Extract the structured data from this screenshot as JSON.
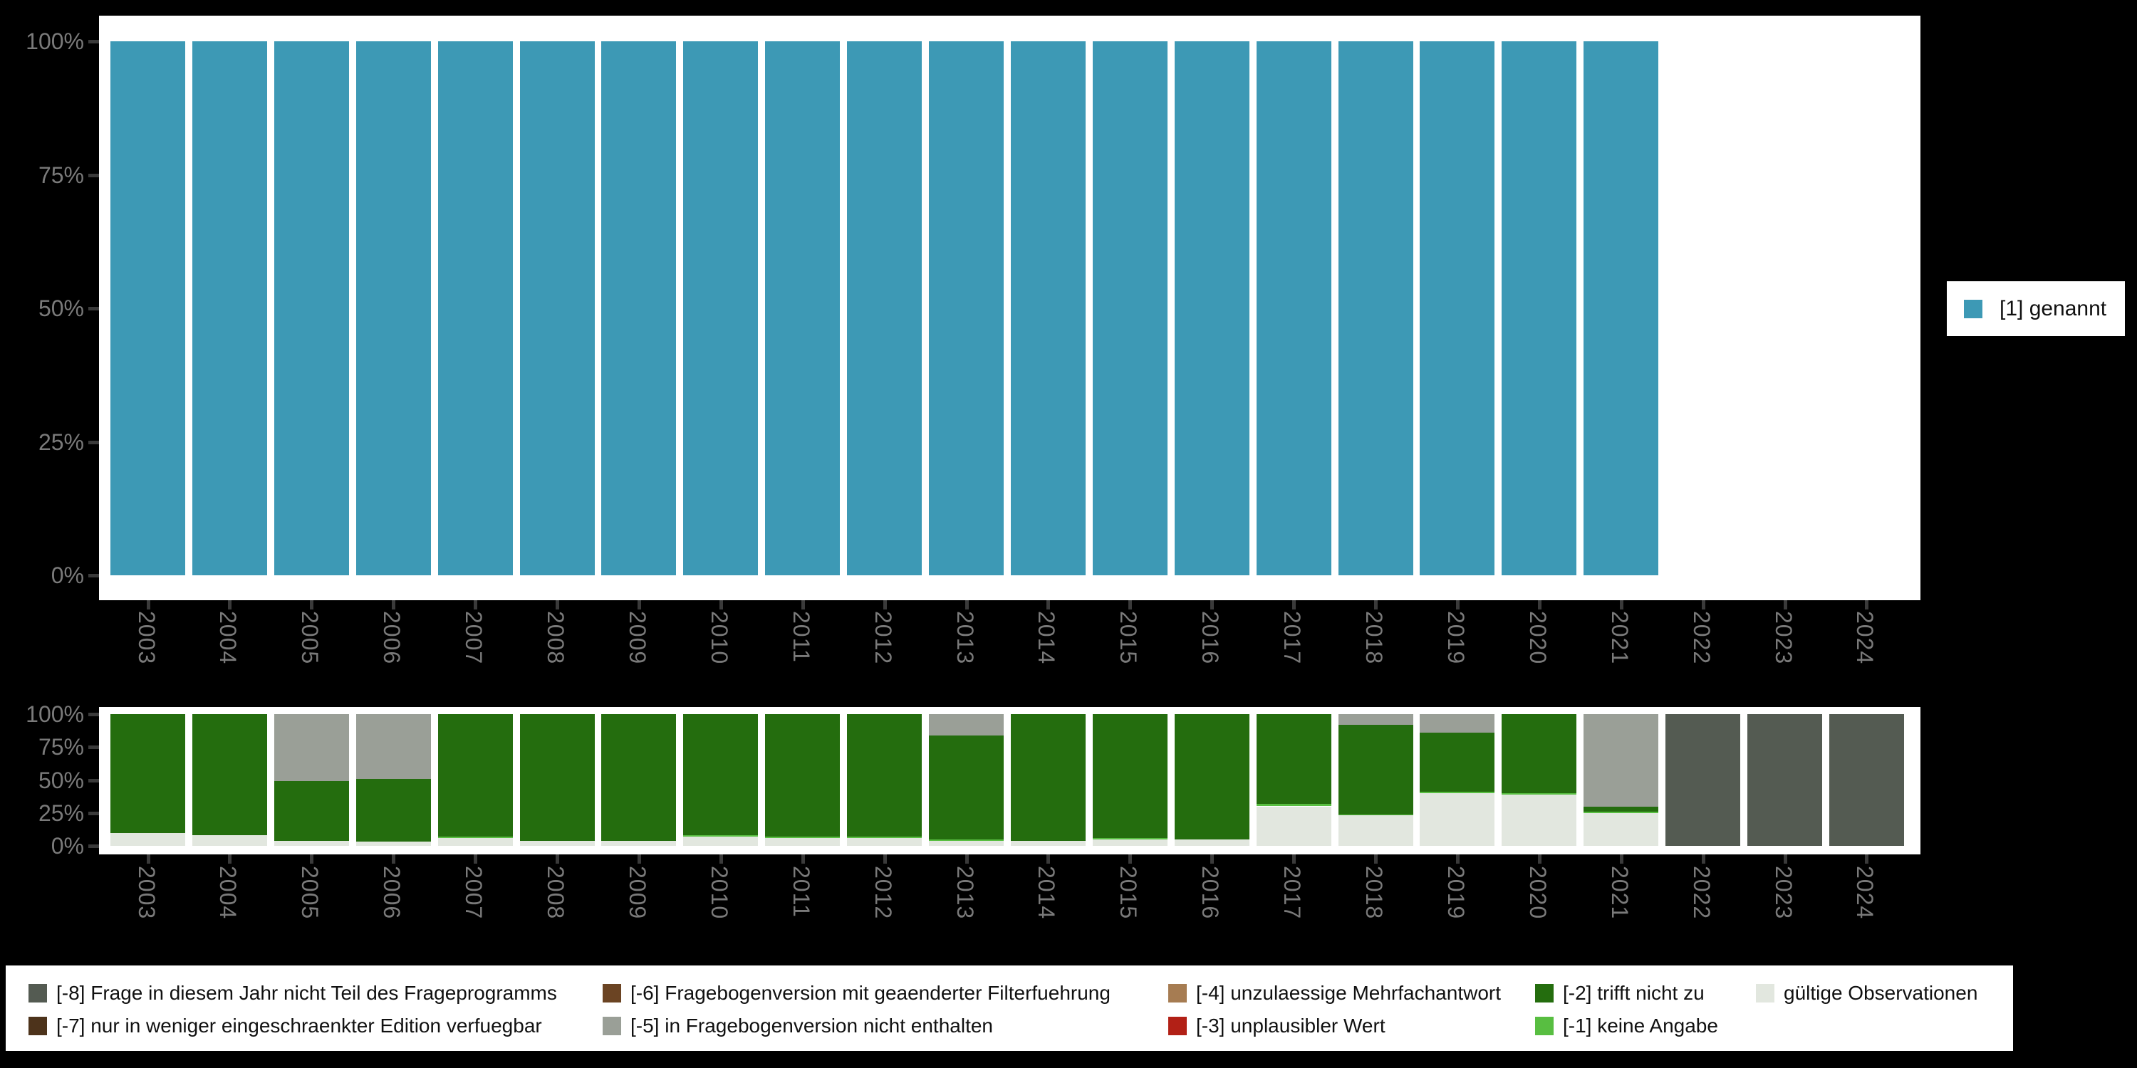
{
  "colors": {
    "background": "#000000",
    "plot_bg": "#ffffff",
    "axis_label": "#7a7a7a",
    "tick": "#3a3a3a",
    "genannt": "#3D99B5",
    "not_part_of_survey": "#545B52",
    "restricted_edition": "#4D331B",
    "changed_filter": "#6B4423",
    "not_in_version": "#9A9F97",
    "multi_answer": "#A67C52",
    "implausible": "#B22016",
    "not_applicable": "#246D0E",
    "no_answer": "#58BE41",
    "valid_obs": "#E2E7DF"
  },
  "top_legend": {
    "label": "[1] genannt",
    "color_key": "genannt"
  },
  "chart_data": [
    {
      "type": "bar",
      "title": "",
      "xlabel": "",
      "ylabel": "",
      "ylim": [
        0,
        100
      ],
      "grid": false,
      "legend_position": "right",
      "yticks": [
        "0%",
        "25%",
        "50%",
        "75%",
        "100%"
      ],
      "categories": [
        "2003",
        "2004",
        "2005",
        "2006",
        "2007",
        "2008",
        "2009",
        "2010",
        "2011",
        "2012",
        "2013",
        "2014",
        "2015",
        "2016",
        "2017",
        "2018",
        "2019",
        "2020",
        "2021",
        "2022",
        "2023",
        "2024"
      ],
      "series": [
        {
          "name": "[1] genannt",
          "color_key": "genannt",
          "values": [
            100,
            100,
            100,
            100,
            100,
            100,
            100,
            100,
            100,
            100,
            100,
            100,
            100,
            100,
            100,
            100,
            100,
            100,
            100,
            null,
            null,
            null
          ]
        }
      ]
    },
    {
      "type": "stacked-bar-percent",
      "title": "",
      "xlabel": "",
      "ylabel": "",
      "ylim": [
        0,
        100
      ],
      "grid": false,
      "yticks": [
        "0%",
        "25%",
        "50%",
        "75%",
        "100%"
      ],
      "categories": [
        "2003",
        "2004",
        "2005",
        "2006",
        "2007",
        "2008",
        "2009",
        "2010",
        "2011",
        "2012",
        "2013",
        "2014",
        "2015",
        "2016",
        "2017",
        "2018",
        "2019",
        "2020",
        "2021",
        "2022",
        "2023",
        "2024"
      ],
      "bars": [
        {
          "category": "2003",
          "segments": [
            {
              "key": "valid_obs",
              "value": 10
            },
            {
              "key": "not_applicable",
              "value": 90
            }
          ]
        },
        {
          "category": "2004",
          "segments": [
            {
              "key": "valid_obs",
              "value": 8
            },
            {
              "key": "not_applicable",
              "value": 92
            }
          ]
        },
        {
          "category": "2005",
          "segments": [
            {
              "key": "valid_obs",
              "value": 4
            },
            {
              "key": "not_applicable",
              "value": 45
            },
            {
              "key": "not_in_version",
              "value": 51
            }
          ]
        },
        {
          "category": "2006",
          "segments": [
            {
              "key": "valid_obs",
              "value": 3
            },
            {
              "key": "not_applicable",
              "value": 48
            },
            {
              "key": "not_in_version",
              "value": 49
            }
          ]
        },
        {
          "category": "2007",
          "segments": [
            {
              "key": "valid_obs",
              "value": 6
            },
            {
              "key": "no_answer",
              "value": 1
            },
            {
              "key": "not_applicable",
              "value": 93
            }
          ]
        },
        {
          "category": "2008",
          "segments": [
            {
              "key": "valid_obs",
              "value": 4
            },
            {
              "key": "not_applicable",
              "value": 96
            }
          ]
        },
        {
          "category": "2009",
          "segments": [
            {
              "key": "valid_obs",
              "value": 4
            },
            {
              "key": "not_applicable",
              "value": 96
            }
          ]
        },
        {
          "category": "2010",
          "segments": [
            {
              "key": "valid_obs",
              "value": 7
            },
            {
              "key": "no_answer",
              "value": 1
            },
            {
              "key": "not_applicable",
              "value": 92
            }
          ]
        },
        {
          "category": "2011",
          "segments": [
            {
              "key": "valid_obs",
              "value": 6
            },
            {
              "key": "no_answer",
              "value": 1
            },
            {
              "key": "not_applicable",
              "value": 93
            }
          ]
        },
        {
          "category": "2012",
          "segments": [
            {
              "key": "valid_obs",
              "value": 6
            },
            {
              "key": "no_answer",
              "value": 1
            },
            {
              "key": "not_applicable",
              "value": 93
            }
          ]
        },
        {
          "category": "2013",
          "segments": [
            {
              "key": "valid_obs",
              "value": 4
            },
            {
              "key": "no_answer",
              "value": 1
            },
            {
              "key": "not_applicable",
              "value": 79
            },
            {
              "key": "not_in_version",
              "value": 16
            }
          ]
        },
        {
          "category": "2014",
          "segments": [
            {
              "key": "valid_obs",
              "value": 4
            },
            {
              "key": "not_applicable",
              "value": 96
            }
          ]
        },
        {
          "category": "2015",
          "segments": [
            {
              "key": "valid_obs",
              "value": 5
            },
            {
              "key": "no_answer",
              "value": 1
            },
            {
              "key": "not_applicable",
              "value": 94
            }
          ]
        },
        {
          "category": "2016",
          "segments": [
            {
              "key": "valid_obs",
              "value": 5
            },
            {
              "key": "not_applicable",
              "value": 95
            }
          ]
        },
        {
          "category": "2017",
          "segments": [
            {
              "key": "valid_obs",
              "value": 30
            },
            {
              "key": "no_answer",
              "value": 2
            },
            {
              "key": "not_applicable",
              "value": 68
            }
          ]
        },
        {
          "category": "2018",
          "segments": [
            {
              "key": "valid_obs",
              "value": 23
            },
            {
              "key": "no_answer",
              "value": 1
            },
            {
              "key": "not_applicable",
              "value": 68
            },
            {
              "key": "not_in_version",
              "value": 8
            }
          ]
        },
        {
          "category": "2019",
          "segments": [
            {
              "key": "valid_obs",
              "value": 40
            },
            {
              "key": "no_answer",
              "value": 1
            },
            {
              "key": "not_applicable",
              "value": 45
            },
            {
              "key": "not_in_version",
              "value": 14
            }
          ]
        },
        {
          "category": "2020",
          "segments": [
            {
              "key": "valid_obs",
              "value": 39
            },
            {
              "key": "no_answer",
              "value": 1
            },
            {
              "key": "not_applicable",
              "value": 60
            }
          ]
        },
        {
          "category": "2021",
          "segments": [
            {
              "key": "valid_obs",
              "value": 25
            },
            {
              "key": "no_answer",
              "value": 1
            },
            {
              "key": "not_applicable",
              "value": 4
            },
            {
              "key": "not_in_version",
              "value": 70
            }
          ]
        },
        {
          "category": "2022",
          "segments": [
            {
              "key": "not_part_of_survey",
              "value": 100
            }
          ]
        },
        {
          "category": "2023",
          "segments": [
            {
              "key": "not_part_of_survey",
              "value": 100
            }
          ]
        },
        {
          "category": "2024",
          "segments": [
            {
              "key": "not_part_of_survey",
              "value": 100
            }
          ]
        }
      ]
    }
  ],
  "bottom_legend": {
    "columns": [
      {
        "items": [
          {
            "label": "[-8] Frage in diesem Jahr nicht Teil des Frageprogramms",
            "key": "not_part_of_survey"
          },
          {
            "label": "[-7] nur in weniger eingeschraenkter Edition verfuegbar",
            "key": "restricted_edition"
          }
        ]
      },
      {
        "items": [
          {
            "label": "[-6] Fragebogenversion mit geaenderter Filterfuehrung",
            "key": "changed_filter"
          },
          {
            "label": "[-5] in Fragebogenversion nicht enthalten",
            "key": "not_in_version"
          }
        ]
      },
      {
        "items": [
          {
            "label": "[-4] unzulaessige Mehrfachantwort",
            "key": "multi_answer"
          },
          {
            "label": "[-3] unplausibler Wert",
            "key": "implausible"
          }
        ]
      },
      {
        "items": [
          {
            "label": "[-2] trifft nicht zu",
            "key": "not_applicable"
          },
          {
            "label": "[-1] keine Angabe",
            "key": "no_answer"
          }
        ]
      },
      {
        "items": [
          {
            "label": "gültige Observationen",
            "key": "valid_obs"
          }
        ]
      }
    ]
  }
}
